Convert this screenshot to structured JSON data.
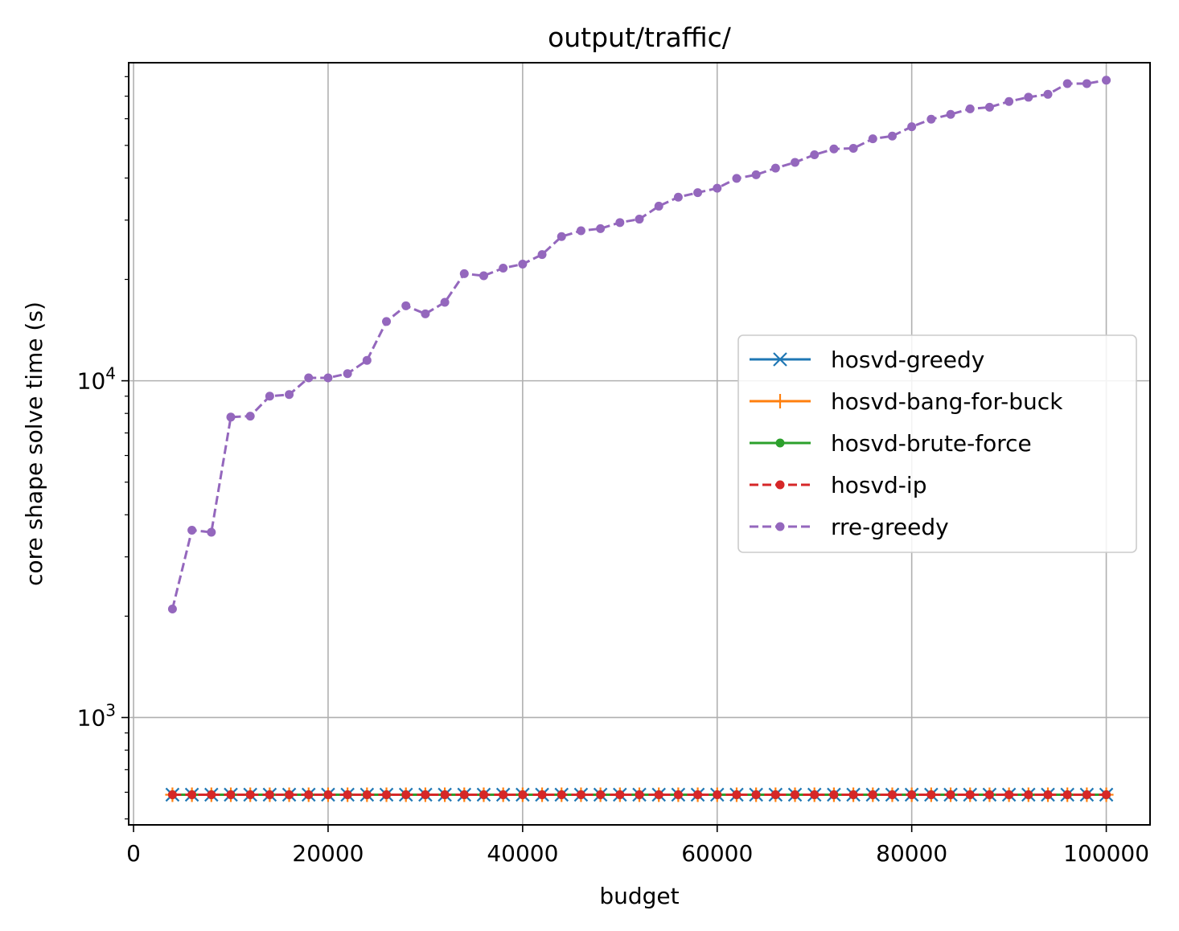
{
  "chart_data": {
    "type": "line",
    "title": "output/traffic/",
    "xlabel": "budget",
    "ylabel": "core shape solve time (s)",
    "xlim": [
      -500,
      104500
    ],
    "ylim": [
      480,
      88000
    ],
    "yscale": "log",
    "grid": true,
    "legend_position": "center-right",
    "x_ticks": [
      {
        "value": 0,
        "label": "0"
      },
      {
        "value": 20000,
        "label": "20000"
      },
      {
        "value": 40000,
        "label": "40000"
      },
      {
        "value": 60000,
        "label": "60000"
      },
      {
        "value": 80000,
        "label": "80000"
      },
      {
        "value": 100000,
        "label": "100000"
      }
    ],
    "y_major_ticks": [
      {
        "value": 1000,
        "base": "10",
        "exp": "3"
      },
      {
        "value": 10000,
        "base": "10",
        "exp": "4"
      }
    ],
    "y_minor_ticks": [
      500,
      600,
      700,
      800,
      900,
      2000,
      3000,
      4000,
      5000,
      6000,
      7000,
      8000,
      9000,
      20000,
      30000,
      40000,
      50000,
      60000,
      70000,
      80000
    ],
    "x": [
      4000,
      6000,
      8000,
      10000,
      12000,
      14000,
      16000,
      18000,
      20000,
      22000,
      24000,
      26000,
      28000,
      30000,
      32000,
      34000,
      36000,
      38000,
      40000,
      42000,
      44000,
      46000,
      48000,
      50000,
      52000,
      54000,
      56000,
      58000,
      60000,
      62000,
      64000,
      66000,
      68000,
      70000,
      72000,
      74000,
      76000,
      78000,
      80000,
      82000,
      84000,
      86000,
      88000,
      90000,
      92000,
      94000,
      96000,
      98000,
      100000
    ],
    "series": [
      {
        "name": "hosvd-greedy",
        "color": "#1f77b4",
        "linestyle": "solid",
        "marker": "x",
        "constant": 590
      },
      {
        "name": "hosvd-bang-for-buck",
        "color": "#ff7f0e",
        "linestyle": "solid",
        "marker": "plus",
        "constant": 590
      },
      {
        "name": "hosvd-brute-force",
        "color": "#2ca02c",
        "linestyle": "solid",
        "marker": "dot",
        "constant": 590
      },
      {
        "name": "hosvd-ip",
        "color": "#d62728",
        "linestyle": "dashed",
        "marker": "dot",
        "constant": 590
      },
      {
        "name": "rre-greedy",
        "color": "#9467bd",
        "linestyle": "dashed",
        "marker": "dot",
        "values": [
          2100,
          3600,
          3550,
          7800,
          7850,
          9000,
          9100,
          10200,
          10200,
          10500,
          11500,
          15000,
          16700,
          15800,
          17100,
          20800,
          20500,
          21600,
          22200,
          23700,
          26800,
          27900,
          28300,
          29500,
          30200,
          33000,
          35100,
          36200,
          37300,
          39900,
          40900,
          42800,
          44500,
          46900,
          48800,
          49000,
          52300,
          53300,
          56800,
          59800,
          61800,
          64200,
          64900,
          67500,
          69500,
          70900,
          76300,
          76300,
          78100
        ]
      }
    ]
  }
}
